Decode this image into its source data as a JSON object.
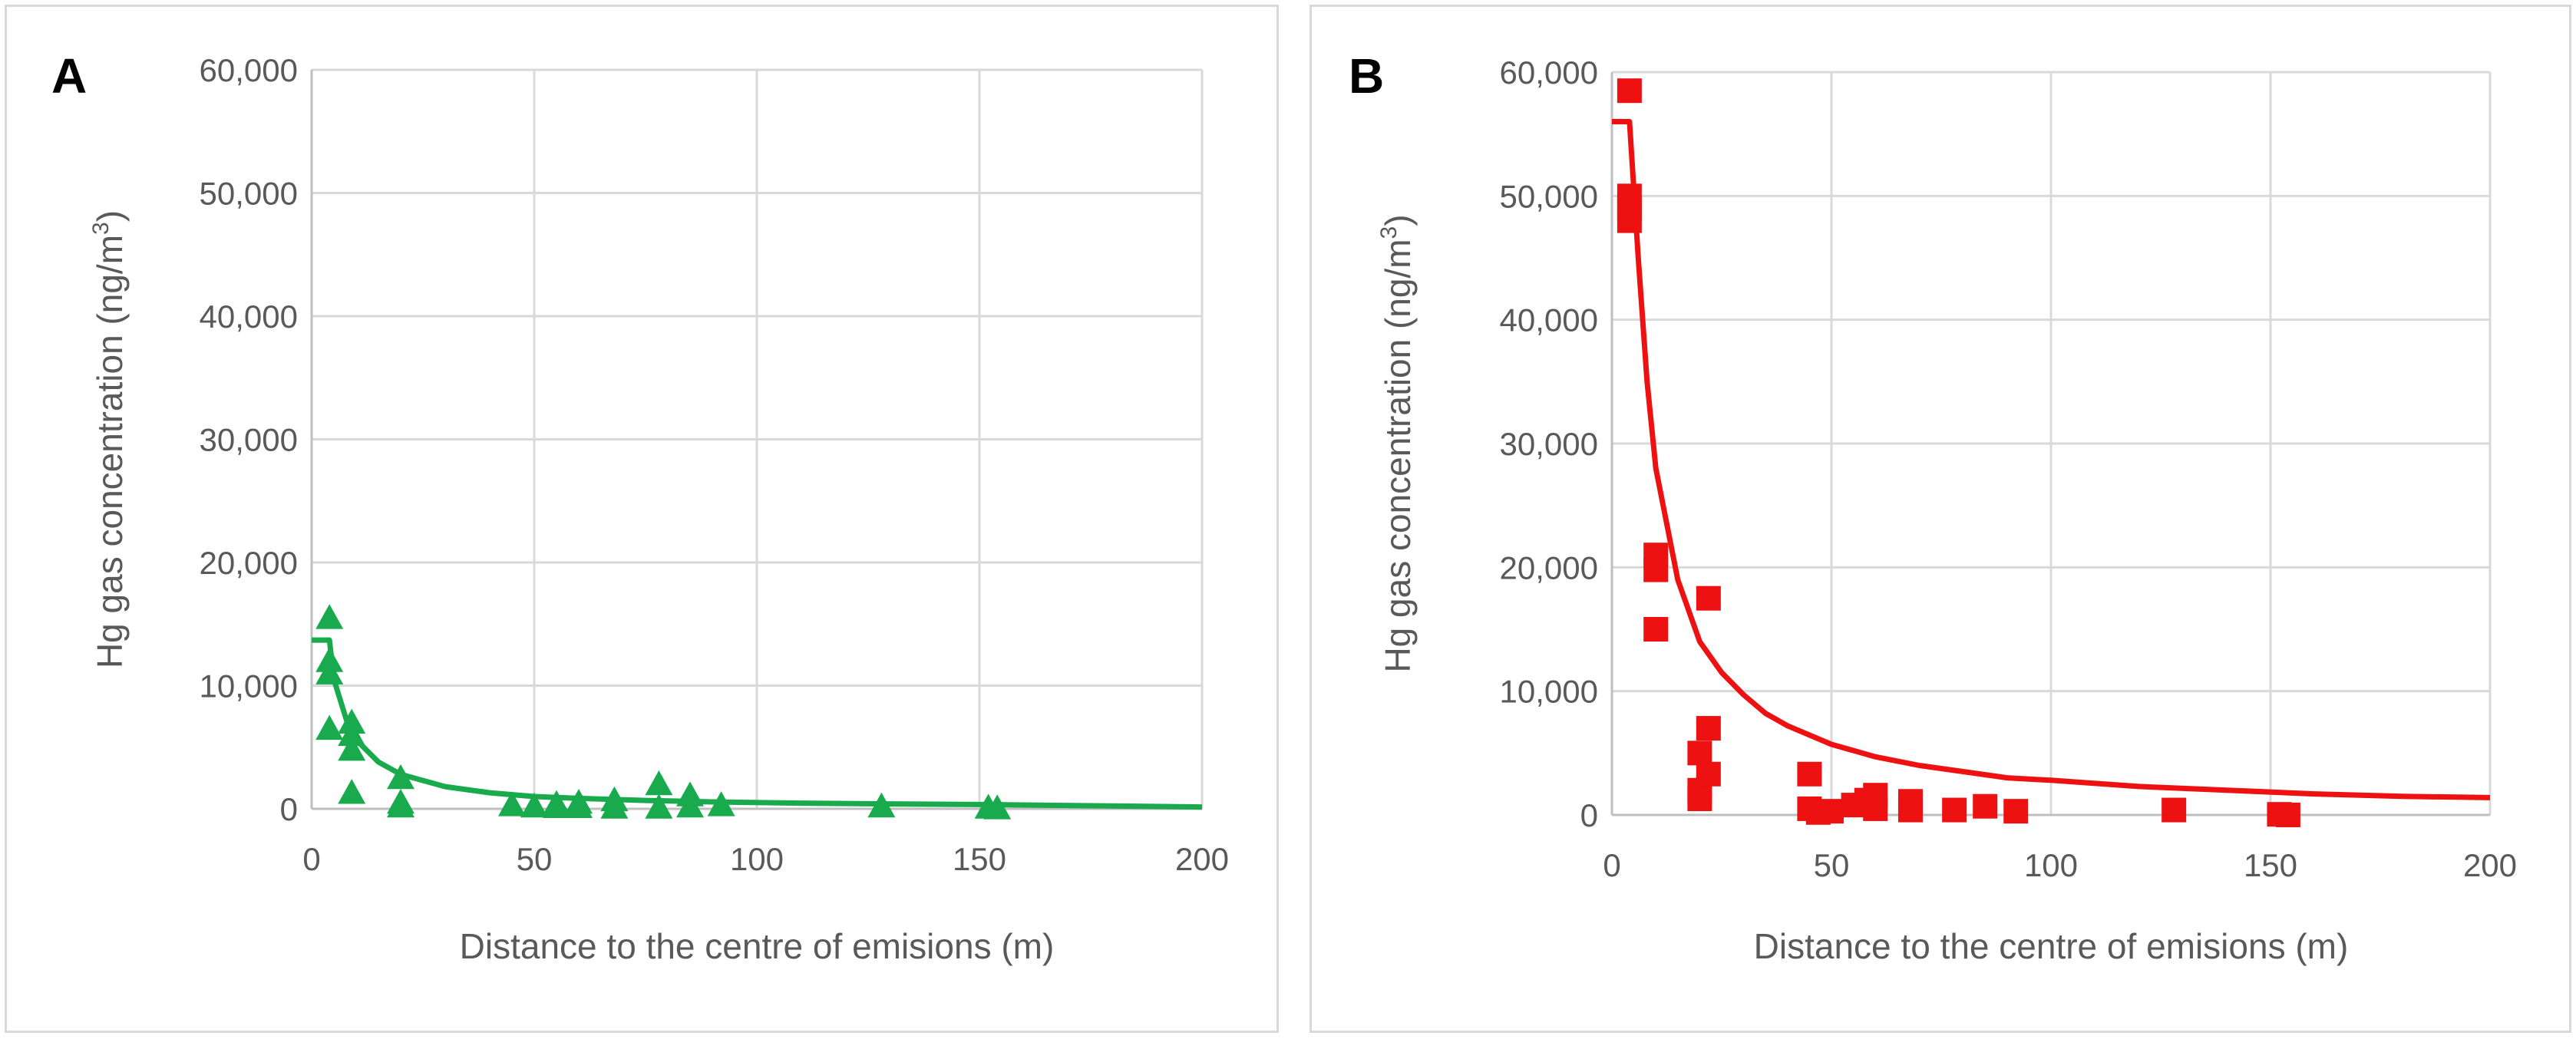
{
  "chart_data": [
    {
      "type": "scatter",
      "panel_label": "A",
      "title": "",
      "xlabel": "Distance to the centre of emisions (m)",
      "ylabel_main": "Hg gas concentration (ng/m",
      "ylabel_sup": "3",
      "ylabel_end": ")",
      "xlim": [
        0,
        200
      ],
      "ylim": [
        0,
        60000
      ],
      "xticks": [
        0,
        50,
        100,
        150,
        200
      ],
      "yticks": [
        0,
        10000,
        20000,
        30000,
        40000,
        50000,
        60000
      ],
      "xtick_labels": [
        "0",
        "50",
        "100",
        "150",
        "200"
      ],
      "ytick_labels": [
        "0",
        "10,000",
        "20,000",
        "30,000",
        "40,000",
        "50,000",
        "60,000"
      ],
      "color": "#1aaa4e",
      "marker": "triangle",
      "points": [
        {
          "x": 4,
          "y": 15500
        },
        {
          "x": 4,
          "y": 12000
        },
        {
          "x": 4,
          "y": 11000
        },
        {
          "x": 4,
          "y": 6500
        },
        {
          "x": 9,
          "y": 7000
        },
        {
          "x": 9,
          "y": 6000
        },
        {
          "x": 9,
          "y": 4800
        },
        {
          "x": 9,
          "y": 1300
        },
        {
          "x": 20,
          "y": 2500
        },
        {
          "x": 20,
          "y": 500
        },
        {
          "x": 20,
          "y": 200
        },
        {
          "x": 45,
          "y": 300
        },
        {
          "x": 50,
          "y": 200
        },
        {
          "x": 55,
          "y": 150
        },
        {
          "x": 55,
          "y": 400
        },
        {
          "x": 60,
          "y": 500
        },
        {
          "x": 60,
          "y": 150
        },
        {
          "x": 68,
          "y": 700
        },
        {
          "x": 68,
          "y": 100
        },
        {
          "x": 78,
          "y": 2000
        },
        {
          "x": 78,
          "y": 100
        },
        {
          "x": 85,
          "y": 1100
        },
        {
          "x": 85,
          "y": 200
        },
        {
          "x": 92,
          "y": 300
        },
        {
          "x": 128,
          "y": 200
        },
        {
          "x": 152,
          "y": 100
        },
        {
          "x": 154,
          "y": 50
        }
      ],
      "fit_line": [
        {
          "x": 0,
          "y": 13700
        },
        {
          "x": 4,
          "y": 13700
        },
        {
          "x": 5,
          "y": 10500
        },
        {
          "x": 8,
          "y": 7000
        },
        {
          "x": 10,
          "y": 5600
        },
        {
          "x": 15,
          "y": 3800
        },
        {
          "x": 20,
          "y": 2800
        },
        {
          "x": 30,
          "y": 1800
        },
        {
          "x": 40,
          "y": 1300
        },
        {
          "x": 50,
          "y": 1000
        },
        {
          "x": 60,
          "y": 850
        },
        {
          "x": 75,
          "y": 680
        },
        {
          "x": 90,
          "y": 560
        },
        {
          "x": 110,
          "y": 460
        },
        {
          "x": 130,
          "y": 400
        },
        {
          "x": 150,
          "y": 350
        },
        {
          "x": 175,
          "y": 250
        },
        {
          "x": 200,
          "y": 150
        }
      ]
    },
    {
      "type": "scatter",
      "panel_label": "B",
      "title": "",
      "xlabel": "Distance to the centre of emisions (m)",
      "ylabel_main": "Hg gas concentration (ng/m",
      "ylabel_sup": "3",
      "ylabel_end": ")",
      "xlim": [
        0,
        200
      ],
      "ylim": [
        0,
        60000
      ],
      "xticks": [
        0,
        50,
        100,
        150,
        200
      ],
      "yticks": [
        0,
        10000,
        20000,
        30000,
        40000,
        50000,
        60000
      ],
      "xtick_labels": [
        "0",
        "50",
        "100",
        "150",
        "200"
      ],
      "ytick_labels": [
        "0",
        "10,000",
        "20,000",
        "30,000",
        "40,000",
        "50,000",
        "60,000"
      ],
      "color": "#ee1111",
      "marker": "square",
      "points": [
        {
          "x": 4,
          "y": 58500
        },
        {
          "x": 4,
          "y": 50000
        },
        {
          "x": 4,
          "y": 49000
        },
        {
          "x": 4,
          "y": 48000
        },
        {
          "x": 10,
          "y": 21000
        },
        {
          "x": 10,
          "y": 19800
        },
        {
          "x": 10,
          "y": 15000
        },
        {
          "x": 20,
          "y": 5000
        },
        {
          "x": 20,
          "y": 2000
        },
        {
          "x": 20,
          "y": 1300
        },
        {
          "x": 22,
          "y": 17500
        },
        {
          "x": 22,
          "y": 7000
        },
        {
          "x": 22,
          "y": 3300
        },
        {
          "x": 45,
          "y": 3300
        },
        {
          "x": 45,
          "y": 500
        },
        {
          "x": 47,
          "y": 200
        },
        {
          "x": 50,
          "y": 300
        },
        {
          "x": 55,
          "y": 800
        },
        {
          "x": 58,
          "y": 1200
        },
        {
          "x": 60,
          "y": 1600
        },
        {
          "x": 60,
          "y": 500
        },
        {
          "x": 68,
          "y": 1100
        },
        {
          "x": 68,
          "y": 400
        },
        {
          "x": 78,
          "y": 400
        },
        {
          "x": 85,
          "y": 700
        },
        {
          "x": 92,
          "y": 300
        },
        {
          "x": 128,
          "y": 400
        },
        {
          "x": 152,
          "y": 50
        },
        {
          "x": 154,
          "y": 0
        }
      ],
      "fit_line": [
        {
          "x": 0,
          "y": 56000
        },
        {
          "x": 4,
          "y": 56000
        },
        {
          "x": 6,
          "y": 45000
        },
        {
          "x": 8,
          "y": 35000
        },
        {
          "x": 10,
          "y": 28000
        },
        {
          "x": 15,
          "y": 19000
        },
        {
          "x": 20,
          "y": 14000
        },
        {
          "x": 25,
          "y": 11500
        },
        {
          "x": 30,
          "y": 9700
        },
        {
          "x": 35,
          "y": 8200
        },
        {
          "x": 40,
          "y": 7200
        },
        {
          "x": 50,
          "y": 5700
        },
        {
          "x": 60,
          "y": 4700
        },
        {
          "x": 70,
          "y": 4000
        },
        {
          "x": 80,
          "y": 3500
        },
        {
          "x": 90,
          "y": 3000
        },
        {
          "x": 100,
          "y": 2800
        },
        {
          "x": 120,
          "y": 2300
        },
        {
          "x": 140,
          "y": 2000
        },
        {
          "x": 160,
          "y": 1700
        },
        {
          "x": 180,
          "y": 1500
        },
        {
          "x": 200,
          "y": 1400
        }
      ]
    }
  ]
}
